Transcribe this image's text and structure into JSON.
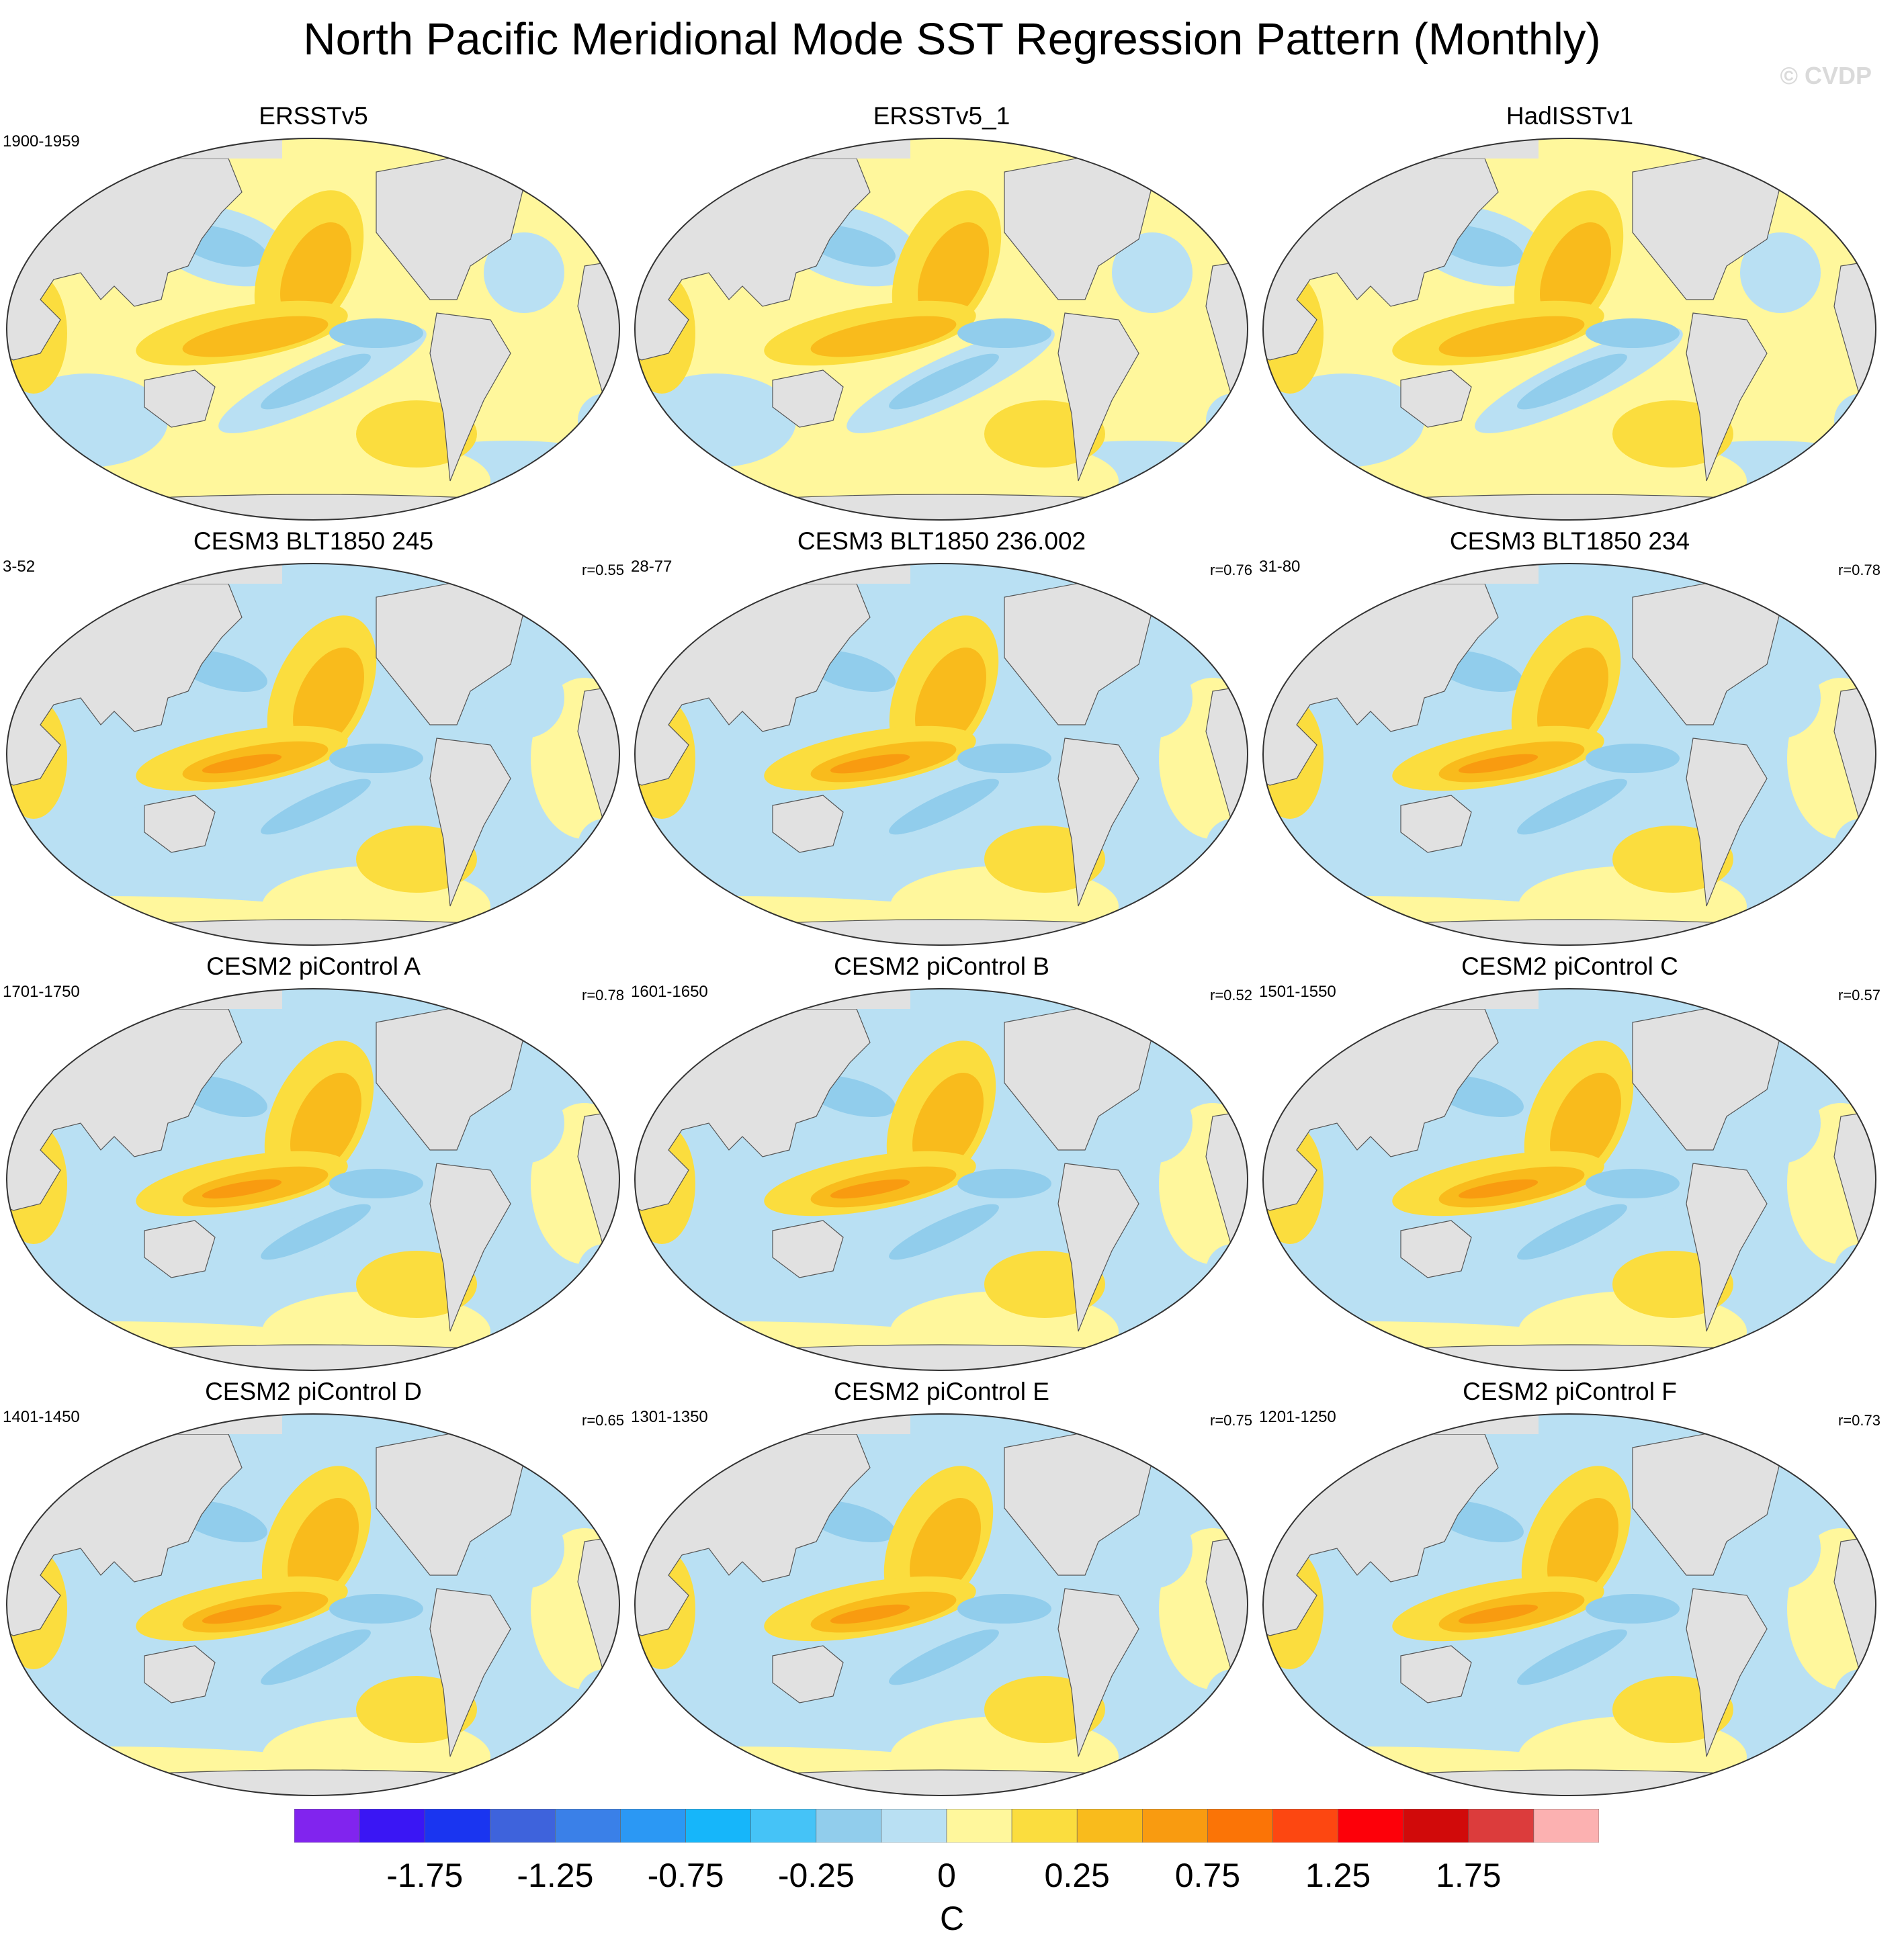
{
  "title": "North Pacific Meridional Mode SST Regression Pattern (Monthly)",
  "credit": "© CVDP",
  "panels": [
    {
      "name": "ERSSTv5",
      "period": "1900-1959",
      "corr": ""
    },
    {
      "name": "ERSSTv5_1",
      "period": "",
      "corr": ""
    },
    {
      "name": "HadISSTv1",
      "period": "",
      "corr": ""
    },
    {
      "name": "CESM3 BLT1850 245",
      "period": "3-52",
      "corr": "r=0.55"
    },
    {
      "name": "CESM3 BLT1850 236.002",
      "period": "28-77",
      "corr": "r=0.76"
    },
    {
      "name": "CESM3 BLT1850 234",
      "period": "31-80",
      "corr": "r=0.78"
    },
    {
      "name": "CESM2 piControl A",
      "period": "1701-1750",
      "corr": "r=0.78"
    },
    {
      "name": "CESM2 piControl B",
      "period": "1601-1650",
      "corr": "r=0.52"
    },
    {
      "name": "CESM2 piControl C",
      "period": "1501-1550",
      "corr": "r=0.57"
    },
    {
      "name": "CESM2 piControl D",
      "period": "1401-1450",
      "corr": "r=0.65"
    },
    {
      "name": "CESM2 piControl E",
      "period": "1301-1350",
      "corr": "r=0.75"
    },
    {
      "name": "CESM2 piControl F",
      "period": "1201-1250",
      "corr": "r=0.73"
    }
  ],
  "colorbar": {
    "units": "C",
    "colors": [
      "#8124ee",
      "#3a16f4",
      "#1a35f0",
      "#3e63dc",
      "#3a80e8",
      "#2b98f4",
      "#16b6fa",
      "#45c3f7",
      "#91cdec",
      "#b9e0f3",
      "#fff79c",
      "#fbdd3e",
      "#f9bb1c",
      "#f99b10",
      "#fb7406",
      "#fd4711",
      "#fd0009",
      "#d10a0a",
      "#dc3c3c",
      "#fcb1b1"
    ],
    "labels": [
      "-1.75",
      "-1.25",
      "-0.75",
      "-0.25",
      "0",
      "0.25",
      "0.75",
      "1.25",
      "1.75"
    ],
    "label_after_box": [
      2,
      4,
      6,
      8,
      10,
      12,
      14,
      16,
      18
    ]
  },
  "pattern": {
    "ocean_neutral": "#b9e0f3",
    "land": "#e1e1e1",
    "coast": "#555555"
  }
}
